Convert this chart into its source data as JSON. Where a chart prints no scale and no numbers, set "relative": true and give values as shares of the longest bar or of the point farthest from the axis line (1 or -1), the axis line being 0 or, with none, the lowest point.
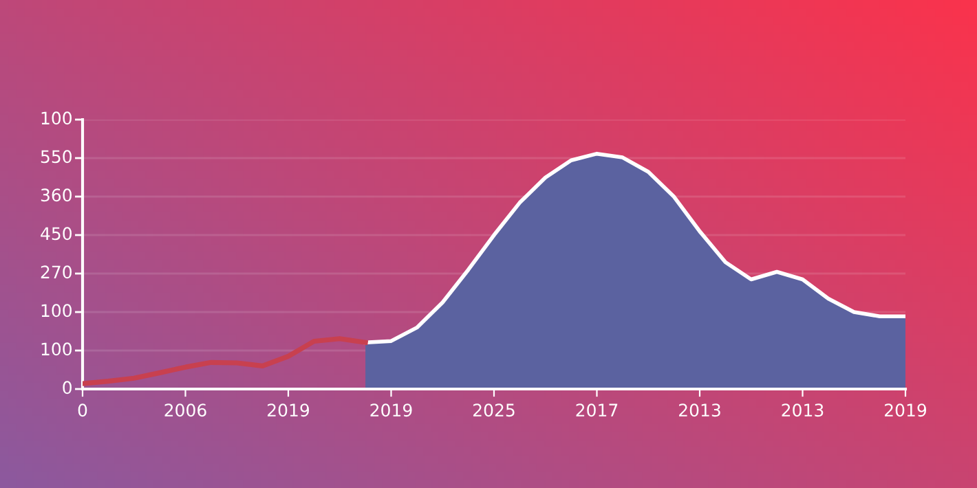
{
  "chart_data": {
    "type": "area",
    "relative": true,
    "grid": "y",
    "categories": [
      "0",
      null,
      null,
      null,
      "2006",
      null,
      null,
      null,
      "2019",
      null,
      null,
      null,
      "2019",
      null,
      null,
      null,
      "2025",
      null,
      null,
      null,
      "2017",
      null,
      null,
      null,
      "2013",
      null,
      null,
      null,
      "2013",
      null,
      null,
      null,
      "2019"
    ],
    "annotations": [
      "0",
      "100",
      "100",
      "270",
      "450",
      "360",
      "550",
      "100"
    ],
    "series": [
      {
        "type": "line",
        "color": "#c8404f",
        "values": [
          0.023,
          0.033,
          0.046,
          0.069,
          0.093,
          0.113,
          0.111,
          0.098,
          0.139,
          0.203,
          0.214,
          0.198,
          null,
          null,
          null,
          null,
          null,
          null,
          null,
          null,
          null,
          null,
          null,
          null,
          null,
          null,
          null,
          null,
          null,
          null,
          null,
          null,
          null
        ]
      },
      {
        "color": "#5b62a0",
        "values": [
          null,
          null,
          null,
          null,
          null,
          null,
          null,
          null,
          null,
          null,
          null,
          0.198,
          0.204,
          0.261,
          0.368,
          0.507,
          0.654,
          0.792,
          0.899,
          0.972,
          1,
          0.984,
          0.923,
          0.817,
          0.67,
          0.539,
          0.466,
          0.498,
          0.466,
          0.384,
          0.327,
          0.309,
          0.309
        ]
      }
    ]
  }
}
